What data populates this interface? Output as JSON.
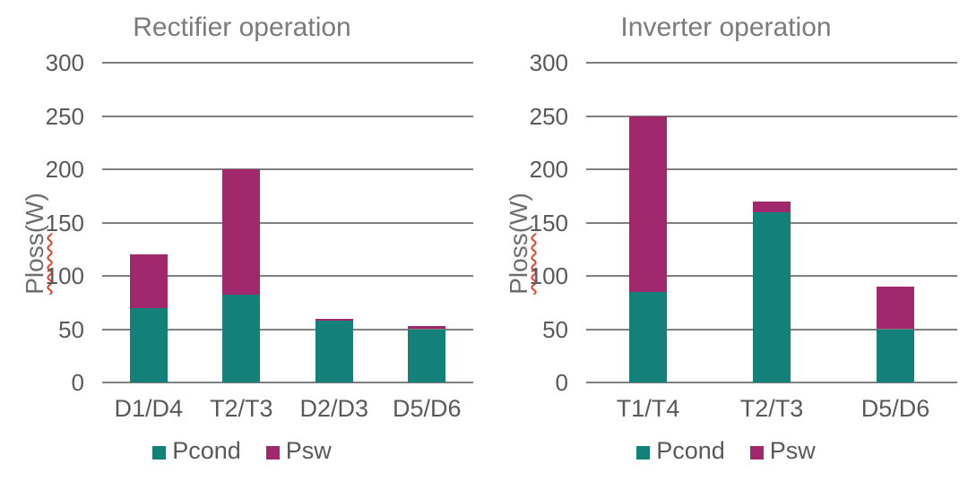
{
  "figure": {
    "background": "#ffffff",
    "ylabel_main": "Ploss",
    "ylabel_unit": "(W)"
  },
  "colors": {
    "pcond": "#13817a",
    "psw": "#a2286e",
    "gridline": "#7f7f7f",
    "axis_text": "#595959",
    "title_text": "#7b7b7b",
    "squiggle": "#e0452f"
  },
  "legend": {
    "items": [
      {
        "label": "Pcond",
        "color": "#13817a"
      },
      {
        "label": "Psw",
        "color": "#a2286e"
      }
    ]
  },
  "chart_data": [
    {
      "type": "bar",
      "stacked": true,
      "title": "Rectifier operation",
      "ylabel": "Ploss(W)",
      "categories": [
        "D1/D4",
        "T2/T3",
        "D2/D3",
        "D5/D6"
      ],
      "series": [
        {
          "name": "Pcond",
          "color": "#13817a",
          "values": [
            70,
            82,
            58,
            50
          ]
        },
        {
          "name": "Psw",
          "color": "#a2286e",
          "values": [
            50,
            118,
            2,
            3
          ]
        }
      ],
      "totals": [
        120,
        200,
        60,
        53
      ],
      "ylim": [
        0,
        300
      ],
      "yticks": [
        300,
        250,
        200,
        150,
        100,
        50,
        0
      ],
      "grid": true,
      "legend_position": "bottom"
    },
    {
      "type": "bar",
      "stacked": true,
      "title": "Inverter operation",
      "ylabel": "Ploss(W)",
      "categories": [
        "T1/T4",
        "T2/T3",
        "D5/D6"
      ],
      "series": [
        {
          "name": "Pcond",
          "color": "#13817a",
          "values": [
            85,
            160,
            50
          ]
        },
        {
          "name": "Psw",
          "color": "#a2286e",
          "values": [
            165,
            10,
            40
          ]
        }
      ],
      "totals": [
        250,
        170,
        90
      ],
      "ylim": [
        0,
        300
      ],
      "yticks": [
        300,
        250,
        200,
        150,
        100,
        50,
        0
      ],
      "grid": true,
      "legend_position": "bottom"
    }
  ]
}
